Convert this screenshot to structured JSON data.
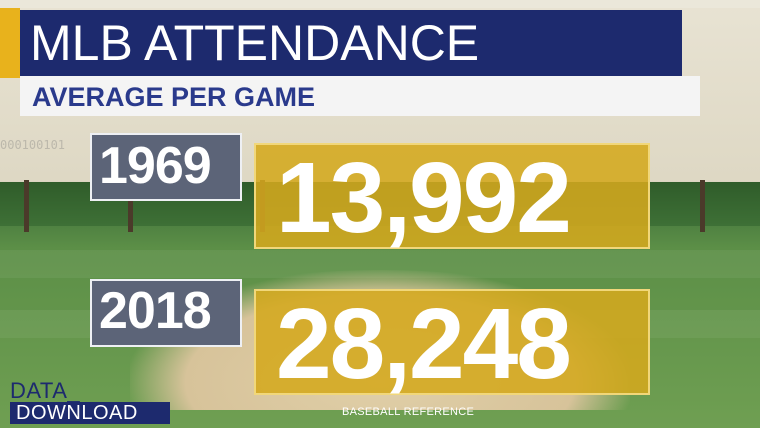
{
  "header": {
    "title": "MLB ATTENDANCE",
    "subtitle": "AVERAGE PER GAME"
  },
  "rows": [
    {
      "year": "1969",
      "value": "13,992"
    },
    {
      "year": "2018",
      "value": "28,248"
    }
  ],
  "branding": {
    "line1": "DATA_",
    "line2": "DOWNLOAD"
  },
  "source": "BASEBALL REFERENCE",
  "colors": {
    "navy": "#1d2a6e",
    "gold": "#d4a81e",
    "year_box": "#5c6478",
    "accent": "#e8b21c"
  }
}
